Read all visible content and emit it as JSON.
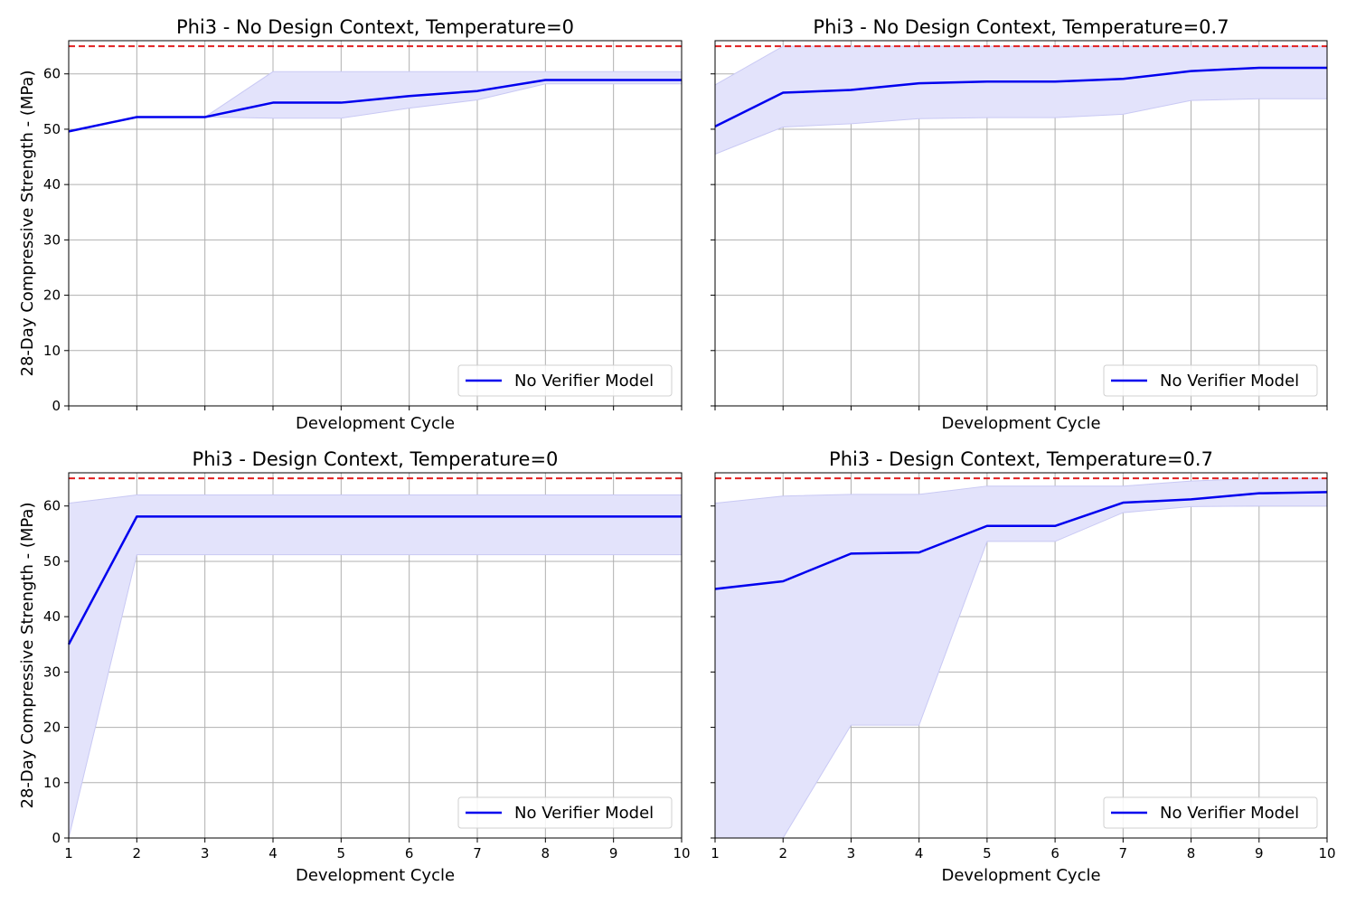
{
  "figure": {
    "ylabel": "28-Day Compressive Strength - (MPa)",
    "xlabel": "Development Cycle"
  },
  "colors": {
    "line": "#0000ee",
    "band": "#e3e3fb",
    "band_edge": "#c9c9f4",
    "target": "#e02020",
    "grid": "#b0b0b0"
  },
  "chart_data": [
    {
      "type": "line",
      "title": "Phi3 -  No Design Context, Temperature=0",
      "xlabel": "Development Cycle",
      "ylabel": "28-Day Compressive Strength - (MPa)",
      "x": [
        1,
        2,
        3,
        4,
        5,
        6,
        7,
        8,
        9,
        10
      ],
      "xlim": [
        1,
        10
      ],
      "ylim": [
        0,
        66
      ],
      "yticks": [
        0,
        10,
        20,
        30,
        40,
        50,
        60
      ],
      "xticks": [
        1,
        2,
        3,
        4,
        5,
        6,
        7,
        8,
        9,
        10
      ],
      "show_xtick_labels": false,
      "show_ytick_labels": true,
      "grid": true,
      "target_line": 65,
      "legend": {
        "label": "No Verifier Model",
        "position": "lower-right"
      },
      "series": [
        {
          "name": "No Verifier Model",
          "values": [
            49.6,
            52.2,
            52.2,
            54.8,
            54.8,
            56.0,
            56.9,
            58.9,
            58.9,
            58.9
          ],
          "band_lower": [
            49.6,
            52.2,
            52.2,
            52.0,
            52.0,
            53.8,
            55.3,
            58.2,
            58.2,
            58.2
          ],
          "band_upper": [
            49.6,
            52.2,
            52.2,
            60.4,
            60.4,
            60.4,
            60.4,
            60.4,
            60.4,
            60.4
          ]
        }
      ]
    },
    {
      "type": "line",
      "title": "Phi3 -  No Design Context, Temperature=0.7",
      "xlabel": "Development Cycle",
      "ylabel": "",
      "x": [
        1,
        2,
        3,
        4,
        5,
        6,
        7,
        8,
        9,
        10
      ],
      "xlim": [
        1,
        10
      ],
      "ylim": [
        0,
        66
      ],
      "yticks": [
        0,
        10,
        20,
        30,
        40,
        50,
        60
      ],
      "xticks": [
        1,
        2,
        3,
        4,
        5,
        6,
        7,
        8,
        9,
        10
      ],
      "show_xtick_labels": false,
      "show_ytick_labels": false,
      "grid": true,
      "target_line": 65,
      "legend": {
        "label": "No Verifier Model",
        "position": "lower-right"
      },
      "series": [
        {
          "name": "No Verifier Model",
          "values": [
            50.5,
            56.6,
            57.1,
            58.3,
            58.6,
            58.6,
            59.1,
            60.5,
            61.1,
            61.1
          ],
          "band_lower": [
            45.5,
            50.4,
            51.0,
            51.9,
            52.1,
            52.1,
            52.7,
            55.2,
            55.5,
            55.5
          ],
          "band_upper": [
            58.0,
            65.0,
            65.0,
            65.0,
            65.0,
            65.0,
            65.0,
            65.0,
            65.0,
            65.0
          ]
        }
      ]
    },
    {
      "type": "line",
      "title": "Phi3 -  Design Context, Temperature=0",
      "xlabel": "Development Cycle",
      "ylabel": "28-Day Compressive Strength - (MPa)",
      "x": [
        1,
        2,
        3,
        4,
        5,
        6,
        7,
        8,
        9,
        10
      ],
      "xlim": [
        1,
        10
      ],
      "ylim": [
        0,
        66
      ],
      "yticks": [
        0,
        10,
        20,
        30,
        40,
        50,
        60
      ],
      "xticks": [
        1,
        2,
        3,
        4,
        5,
        6,
        7,
        8,
        9,
        10
      ],
      "show_xtick_labels": true,
      "show_ytick_labels": true,
      "grid": true,
      "target_line": 65,
      "legend": {
        "label": "No Verifier Model",
        "position": "lower-right"
      },
      "series": [
        {
          "name": "No Verifier Model",
          "values": [
            35.0,
            58.1,
            58.1,
            58.1,
            58.1,
            58.1,
            58.1,
            58.1,
            58.1,
            58.1
          ],
          "band_lower": [
            0.0,
            51.2,
            51.2,
            51.2,
            51.2,
            51.2,
            51.2,
            51.2,
            51.2,
            51.2
          ],
          "band_upper": [
            60.5,
            62.0,
            62.0,
            62.0,
            62.0,
            62.0,
            62.0,
            62.0,
            62.0,
            62.0
          ]
        }
      ]
    },
    {
      "type": "line",
      "title": "Phi3 -  Design Context, Temperature=0.7",
      "xlabel": "Development Cycle",
      "ylabel": "",
      "x": [
        1,
        2,
        3,
        4,
        5,
        6,
        7,
        8,
        9,
        10
      ],
      "xlim": [
        1,
        10
      ],
      "ylim": [
        0,
        66
      ],
      "yticks": [
        0,
        10,
        20,
        30,
        40,
        50,
        60
      ],
      "xticks": [
        1,
        2,
        3,
        4,
        5,
        6,
        7,
        8,
        9,
        10
      ],
      "show_xtick_labels": true,
      "show_ytick_labels": false,
      "grid": true,
      "target_line": 65,
      "legend": {
        "label": "No Verifier Model",
        "position": "lower-right"
      },
      "series": [
        {
          "name": "No Verifier Model",
          "values": [
            45.0,
            46.4,
            51.4,
            51.6,
            56.4,
            56.4,
            60.6,
            61.2,
            62.3,
            62.5
          ],
          "band_lower": [
            0.0,
            0.0,
            20.4,
            20.4,
            53.6,
            53.6,
            58.8,
            59.9,
            60.0,
            60.0
          ],
          "band_upper": [
            60.5,
            61.8,
            62.1,
            62.1,
            63.6,
            63.6,
            63.6,
            64.5,
            65.0,
            65.0
          ]
        }
      ]
    }
  ]
}
